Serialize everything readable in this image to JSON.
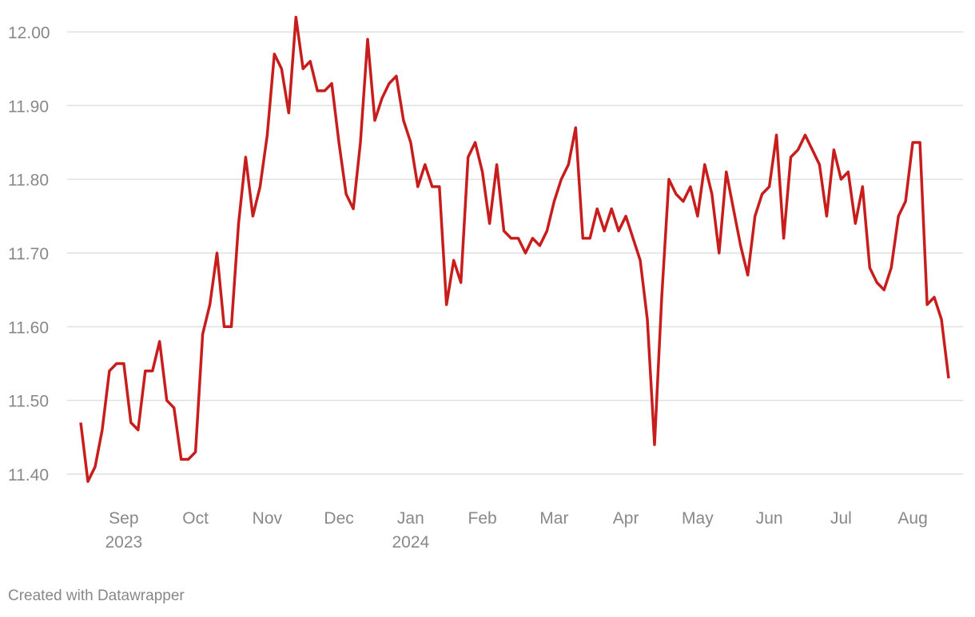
{
  "chart_data": {
    "type": "line",
    "categories": [
      null,
      null,
      null,
      null,
      null,
      null,
      "Sep",
      null,
      null,
      null,
      null,
      null,
      null,
      null,
      null,
      null,
      "Oct",
      null,
      null,
      null,
      null,
      null,
      null,
      null,
      null,
      null,
      "Nov",
      null,
      null,
      null,
      null,
      null,
      null,
      null,
      null,
      null,
      "Dec",
      null,
      null,
      null,
      null,
      null,
      null,
      null,
      null,
      null,
      "Jan",
      null,
      null,
      null,
      null,
      null,
      null,
      null,
      null,
      null,
      "Feb",
      null,
      null,
      null,
      null,
      null,
      null,
      null,
      null,
      null,
      "Mar",
      null,
      null,
      null,
      null,
      null,
      null,
      null,
      null,
      null,
      "Apr",
      null,
      null,
      null,
      null,
      null,
      null,
      null,
      null,
      null,
      "May",
      null,
      null,
      null,
      null,
      null,
      null,
      null,
      null,
      null,
      "Jun",
      null,
      null,
      null,
      null,
      null,
      null,
      null,
      null,
      null,
      "Jul",
      null,
      null,
      null,
      null,
      null,
      null,
      null,
      null,
      null,
      "Aug",
      null,
      null,
      null,
      null,
      null
    ],
    "category_years": [
      null,
      null,
      null,
      null,
      null,
      null,
      "2023",
      null,
      null,
      null,
      null,
      null,
      null,
      null,
      null,
      null,
      null,
      null,
      null,
      null,
      null,
      null,
      null,
      null,
      null,
      null,
      null,
      null,
      null,
      null,
      null,
      null,
      null,
      null,
      null,
      null,
      null,
      null,
      null,
      null,
      null,
      null,
      null,
      null,
      null,
      null,
      "2024",
      null,
      null,
      null,
      null,
      null,
      null,
      null,
      null,
      null,
      null,
      null,
      null,
      null,
      null,
      null,
      null,
      null,
      null,
      null,
      null,
      null,
      null,
      null,
      null,
      null,
      null,
      null,
      null,
      null,
      null,
      null,
      null,
      null,
      null,
      null,
      null,
      null,
      null,
      null,
      null,
      null,
      null,
      null,
      null,
      null,
      null,
      null,
      null,
      null,
      null,
      null,
      null,
      null,
      null,
      null,
      null,
      null,
      null,
      null,
      null,
      null,
      null,
      null,
      null,
      null,
      null,
      null,
      null,
      null,
      null,
      null,
      null,
      null,
      null,
      null
    ],
    "series": [
      {
        "color": "#c71e1d",
        "values": [
          11.47,
          11.39,
          11.41,
          11.46,
          11.54,
          11.55,
          11.55,
          11.47,
          11.46,
          11.54,
          11.54,
          11.58,
          11.5,
          11.49,
          11.42,
          11.42,
          11.43,
          11.59,
          11.63,
          11.7,
          11.6,
          11.6,
          11.74,
          11.83,
          11.75,
          11.79,
          11.86,
          11.97,
          11.95,
          11.89,
          12.02,
          11.95,
          11.96,
          11.92,
          11.92,
          11.93,
          11.85,
          11.78,
          11.76,
          11.85,
          11.99,
          11.88,
          11.91,
          11.93,
          11.94,
          11.88,
          11.85,
          11.79,
          11.82,
          11.79,
          11.79,
          11.63,
          11.69,
          11.66,
          11.83,
          11.85,
          11.81,
          11.74,
          11.82,
          11.73,
          11.72,
          11.72,
          11.7,
          11.72,
          11.71,
          11.73,
          11.77,
          11.8,
          11.82,
          11.87,
          11.72,
          11.72,
          11.76,
          11.73,
          11.76,
          11.73,
          11.75,
          11.72,
          11.69,
          11.61,
          11.44,
          11.64,
          11.8,
          11.78,
          11.77,
          11.79,
          11.75,
          11.82,
          11.78,
          11.7,
          11.81,
          11.76,
          11.71,
          11.67,
          11.75,
          11.78,
          11.79,
          11.86,
          11.72,
          11.83,
          11.84,
          11.86,
          11.84,
          11.82,
          11.75,
          11.84,
          11.8,
          11.81,
          11.74,
          11.79,
          11.68,
          11.66,
          11.65,
          11.68,
          11.75,
          11.77,
          11.85,
          11.85,
          11.63,
          11.64,
          11.61,
          11.53
        ]
      }
    ],
    "ylim": [
      11.37,
      12.02
    ],
    "yticks": [
      {
        "value": 11.4,
        "label": "11.40"
      },
      {
        "value": 11.5,
        "label": "11.50"
      },
      {
        "value": 11.6,
        "label": "11.60"
      },
      {
        "value": 11.7,
        "label": "11.70"
      },
      {
        "value": 11.8,
        "label": "11.80"
      },
      {
        "value": 11.9,
        "label": "11.90"
      },
      {
        "value": 12,
        "label": "12.00"
      }
    ],
    "grid": true,
    "footer": "Created with Datawrapper"
  }
}
